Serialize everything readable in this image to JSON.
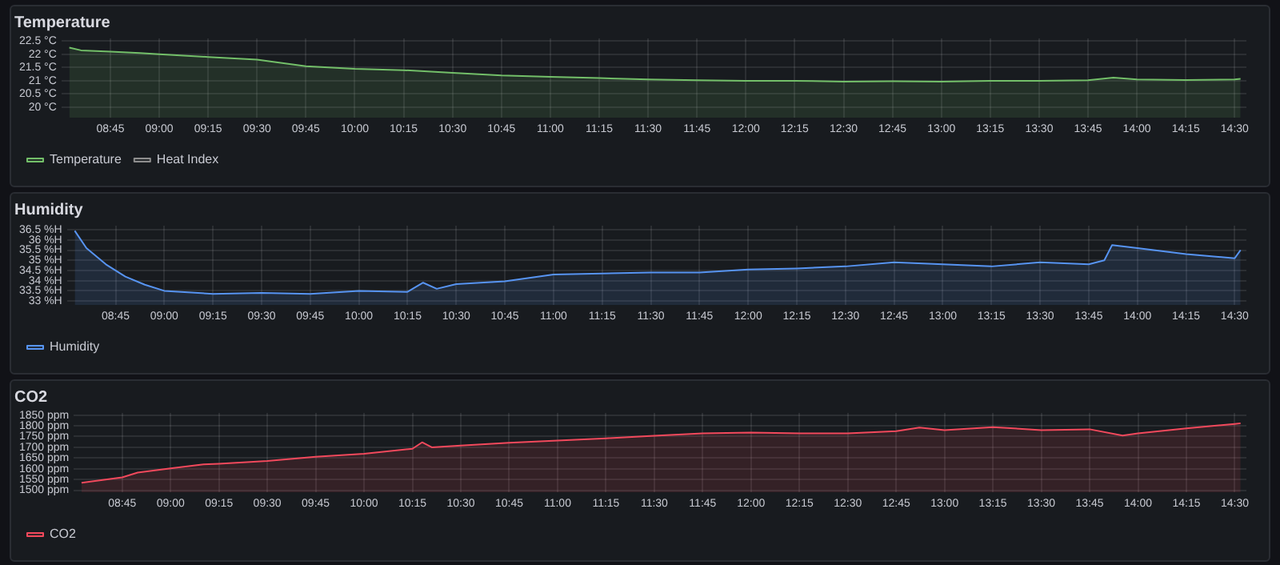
{
  "chart_data": [
    {
      "type": "area",
      "title": "Temperature",
      "x": [
        8.54,
        8.6,
        8.75,
        8.9,
        9.0,
        9.25,
        9.5,
        9.75,
        10.0,
        10.25,
        10.5,
        10.75,
        11.0,
        11.25,
        11.5,
        11.75,
        12.0,
        12.25,
        12.5,
        12.75,
        13.0,
        13.25,
        13.5,
        13.75,
        13.88,
        14.0,
        14.25,
        14.5,
        14.53
      ],
      "series": [
        {
          "name": "Temperature",
          "color": "#73bf69",
          "values": [
            22.25,
            22.15,
            22.1,
            22.05,
            22.0,
            21.9,
            21.8,
            21.55,
            21.45,
            21.4,
            21.3,
            21.2,
            21.15,
            21.1,
            21.05,
            21.02,
            21.0,
            21.0,
            20.97,
            20.98,
            20.97,
            21.0,
            21.0,
            21.02,
            21.12,
            21.05,
            21.03,
            21.05,
            21.07
          ]
        },
        {
          "name": "Heat Index",
          "color": "#8e8e8e",
          "values": [
            null,
            null,
            null,
            null,
            null,
            null,
            null,
            null,
            null,
            null,
            null,
            null,
            null,
            null,
            null,
            null,
            null,
            null,
            null,
            null,
            null,
            null,
            null,
            null,
            null,
            null,
            null,
            null,
            null
          ]
        }
      ],
      "xlim": [
        8.5,
        14.56
      ],
      "xticks": [
        {
          "value": 8.75,
          "label": "08:45"
        },
        {
          "value": 9,
          "label": "09:00"
        },
        {
          "value": 9.25,
          "label": "09:15"
        },
        {
          "value": 9.5,
          "label": "09:30"
        },
        {
          "value": 9.75,
          "label": "09:45"
        },
        {
          "value": 10,
          "label": "10:00"
        },
        {
          "value": 10.25,
          "label": "10:15"
        },
        {
          "value": 10.5,
          "label": "10:30"
        },
        {
          "value": 10.75,
          "label": "10:45"
        },
        {
          "value": 11,
          "label": "11:00"
        },
        {
          "value": 11.25,
          "label": "11:15"
        },
        {
          "value": 11.5,
          "label": "11:30"
        },
        {
          "value": 11.75,
          "label": "11:45"
        },
        {
          "value": 12,
          "label": "12:00"
        },
        {
          "value": 12.25,
          "label": "12:15"
        },
        {
          "value": 12.5,
          "label": "12:30"
        },
        {
          "value": 12.75,
          "label": "12:45"
        },
        {
          "value": 13,
          "label": "13:00"
        },
        {
          "value": 13.25,
          "label": "13:15"
        },
        {
          "value": 13.5,
          "label": "13:30"
        },
        {
          "value": 13.75,
          "label": "13:45"
        },
        {
          "value": 14,
          "label": "14:00"
        },
        {
          "value": 14.25,
          "label": "14:15"
        },
        {
          "value": 14.5,
          "label": "14:30"
        }
      ],
      "ylim": [
        19.6,
        22.6
      ],
      "yticks": [
        {
          "value": 20,
          "label": "20 °C"
        },
        {
          "value": 20.5,
          "label": "20.5 °C"
        },
        {
          "value": 21,
          "label": "21 °C"
        },
        {
          "value": 21.5,
          "label": "21.5 °C"
        },
        {
          "value": 22,
          "label": "22 °C"
        },
        {
          "value": 22.5,
          "label": "22.5 °C"
        }
      ],
      "grid": true,
      "legend": "bottom left",
      "marker": "none"
    },
    {
      "type": "area",
      "title": "Humidity",
      "x": [
        8.54,
        8.6,
        8.7,
        8.8,
        8.9,
        9.0,
        9.25,
        9.5,
        9.75,
        10.0,
        10.25,
        10.33,
        10.4,
        10.5,
        10.75,
        11.0,
        11.25,
        11.5,
        11.75,
        12.0,
        12.25,
        12.5,
        12.75,
        13.0,
        13.25,
        13.5,
        13.75,
        13.83,
        13.87,
        14.0,
        14.25,
        14.5,
        14.53
      ],
      "series": [
        {
          "name": "Humidity",
          "color": "#5794f2",
          "values": [
            36.45,
            35.6,
            34.8,
            34.2,
            33.8,
            33.5,
            33.35,
            33.4,
            33.35,
            33.5,
            33.45,
            33.9,
            33.6,
            33.83,
            33.97,
            34.3,
            34.35,
            34.4,
            34.4,
            34.55,
            34.6,
            34.7,
            34.9,
            34.8,
            34.7,
            34.9,
            34.8,
            35.0,
            35.75,
            35.6,
            35.3,
            35.1,
            35.5
          ]
        }
      ],
      "xlim": [
        8.5,
        14.56
      ],
      "xticks": [
        {
          "value": 8.75,
          "label": "08:45"
        },
        {
          "value": 9,
          "label": "09:00"
        },
        {
          "value": 9.25,
          "label": "09:15"
        },
        {
          "value": 9.5,
          "label": "09:30"
        },
        {
          "value": 9.75,
          "label": "09:45"
        },
        {
          "value": 10,
          "label": "10:00"
        },
        {
          "value": 10.25,
          "label": "10:15"
        },
        {
          "value": 10.5,
          "label": "10:30"
        },
        {
          "value": 10.75,
          "label": "10:45"
        },
        {
          "value": 11,
          "label": "11:00"
        },
        {
          "value": 11.25,
          "label": "11:15"
        },
        {
          "value": 11.5,
          "label": "11:30"
        },
        {
          "value": 11.75,
          "label": "11:45"
        },
        {
          "value": 12,
          "label": "12:00"
        },
        {
          "value": 12.25,
          "label": "12:15"
        },
        {
          "value": 12.5,
          "label": "12:30"
        },
        {
          "value": 12.75,
          "label": "12:45"
        },
        {
          "value": 13,
          "label": "13:00"
        },
        {
          "value": 13.25,
          "label": "13:15"
        },
        {
          "value": 13.5,
          "label": "13:30"
        },
        {
          "value": 13.75,
          "label": "13:45"
        },
        {
          "value": 14,
          "label": "14:00"
        },
        {
          "value": 14.25,
          "label": "14:15"
        },
        {
          "value": 14.5,
          "label": "14:30"
        }
      ],
      "ylim": [
        32.8,
        36.7
      ],
      "yticks": [
        {
          "value": 33,
          "label": "33 %H"
        },
        {
          "value": 33.5,
          "label": "33.5 %H"
        },
        {
          "value": 34,
          "label": "34 %H"
        },
        {
          "value": 34.5,
          "label": "34.5 %H"
        },
        {
          "value": 35,
          "label": "35 %H"
        },
        {
          "value": 35.5,
          "label": "35.5 %H"
        },
        {
          "value": 36,
          "label": "36 %H"
        },
        {
          "value": 36.5,
          "label": "36.5 %H"
        }
      ],
      "grid": true,
      "legend": "bottom left",
      "marker": "none"
    },
    {
      "type": "area",
      "title": "CO2",
      "x": [
        8.54,
        8.75,
        8.83,
        9.0,
        9.17,
        9.25,
        9.5,
        9.75,
        10.0,
        10.25,
        10.3,
        10.35,
        10.5,
        10.75,
        11.0,
        11.25,
        11.5,
        11.75,
        12.0,
        12.25,
        12.5,
        12.75,
        12.87,
        13.0,
        13.25,
        13.5,
        13.75,
        13.92,
        14.0,
        14.25,
        14.5,
        14.53
      ],
      "series": [
        {
          "name": "CO2",
          "color": "#f2495c",
          "values": [
            1535,
            1560,
            1582,
            1602,
            1620,
            1623,
            1636,
            1656,
            1670,
            1693,
            1723,
            1700,
            1708,
            1721,
            1731,
            1742,
            1754,
            1765,
            1769,
            1765,
            1765,
            1775,
            1792,
            1780,
            1794,
            1780,
            1784,
            1755,
            1765,
            1788,
            1809,
            1812
          ]
        }
      ],
      "xlim": [
        8.5,
        14.56
      ],
      "xticks": [
        {
          "value": 8.75,
          "label": "08:45"
        },
        {
          "value": 9,
          "label": "09:00"
        },
        {
          "value": 9.25,
          "label": "09:15"
        },
        {
          "value": 9.5,
          "label": "09:30"
        },
        {
          "value": 9.75,
          "label": "09:45"
        },
        {
          "value": 10,
          "label": "10:00"
        },
        {
          "value": 10.25,
          "label": "10:15"
        },
        {
          "value": 10.5,
          "label": "10:30"
        },
        {
          "value": 10.75,
          "label": "10:45"
        },
        {
          "value": 11,
          "label": "11:00"
        },
        {
          "value": 11.25,
          "label": "11:15"
        },
        {
          "value": 11.5,
          "label": "11:30"
        },
        {
          "value": 11.75,
          "label": "11:45"
        },
        {
          "value": 12,
          "label": "12:00"
        },
        {
          "value": 12.25,
          "label": "12:15"
        },
        {
          "value": 12.5,
          "label": "12:30"
        },
        {
          "value": 12.75,
          "label": "12:45"
        },
        {
          "value": 13,
          "label": "13:00"
        },
        {
          "value": 13.25,
          "label": "13:15"
        },
        {
          "value": 13.5,
          "label": "13:30"
        },
        {
          "value": 13.75,
          "label": "13:45"
        },
        {
          "value": 14,
          "label": "14:00"
        },
        {
          "value": 14.25,
          "label": "14:15"
        },
        {
          "value": 14.5,
          "label": "14:30"
        }
      ],
      "ylim": [
        1490,
        1860
      ],
      "yticks": [
        {
          "value": 1500,
          "label": "1500 ppm"
        },
        {
          "value": 1550,
          "label": "1550 ppm"
        },
        {
          "value": 1600,
          "label": "1600 ppm"
        },
        {
          "value": 1650,
          "label": "1650 ppm"
        },
        {
          "value": 1700,
          "label": "1700 ppm"
        },
        {
          "value": 1750,
          "label": "1750 ppm"
        },
        {
          "value": 1800,
          "label": "1800 ppm"
        },
        {
          "value": 1850,
          "label": "1850 ppm"
        }
      ],
      "grid": true,
      "legend": "bottom left",
      "marker": "none"
    }
  ]
}
